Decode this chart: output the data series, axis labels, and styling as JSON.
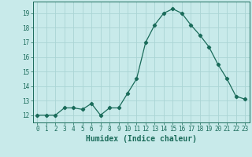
{
  "x": [
    0,
    1,
    2,
    3,
    4,
    5,
    6,
    7,
    8,
    9,
    10,
    11,
    12,
    13,
    14,
    15,
    16,
    17,
    18,
    19,
    20,
    21,
    22,
    23
  ],
  "y": [
    12,
    12,
    12,
    12.5,
    12.5,
    12.4,
    12.8,
    12.0,
    12.5,
    12.5,
    13.5,
    14.5,
    17.0,
    18.2,
    19.0,
    19.3,
    19.0,
    18.2,
    17.5,
    16.7,
    15.5,
    14.5,
    13.3,
    13.1
  ],
  "line_color": "#1a6b5a",
  "marker": "D",
  "marker_size": 2.2,
  "bg_color": "#c8eaea",
  "grid_color": "#aad4d4",
  "tick_color": "#1a6b5a",
  "xlabel": "Humidex (Indice chaleur)",
  "xlabel_fontsize": 7,
  "ylim": [
    11.5,
    19.8
  ],
  "xlim": [
    -0.5,
    23.5
  ],
  "yticks": [
    12,
    13,
    14,
    15,
    16,
    17,
    18,
    19
  ],
  "xticks": [
    0,
    1,
    2,
    3,
    4,
    5,
    6,
    7,
    8,
    9,
    10,
    11,
    12,
    13,
    14,
    15,
    16,
    17,
    18,
    19,
    20,
    21,
    22,
    23
  ],
  "tick_fontsize": 5.5,
  "linewidth": 0.9
}
